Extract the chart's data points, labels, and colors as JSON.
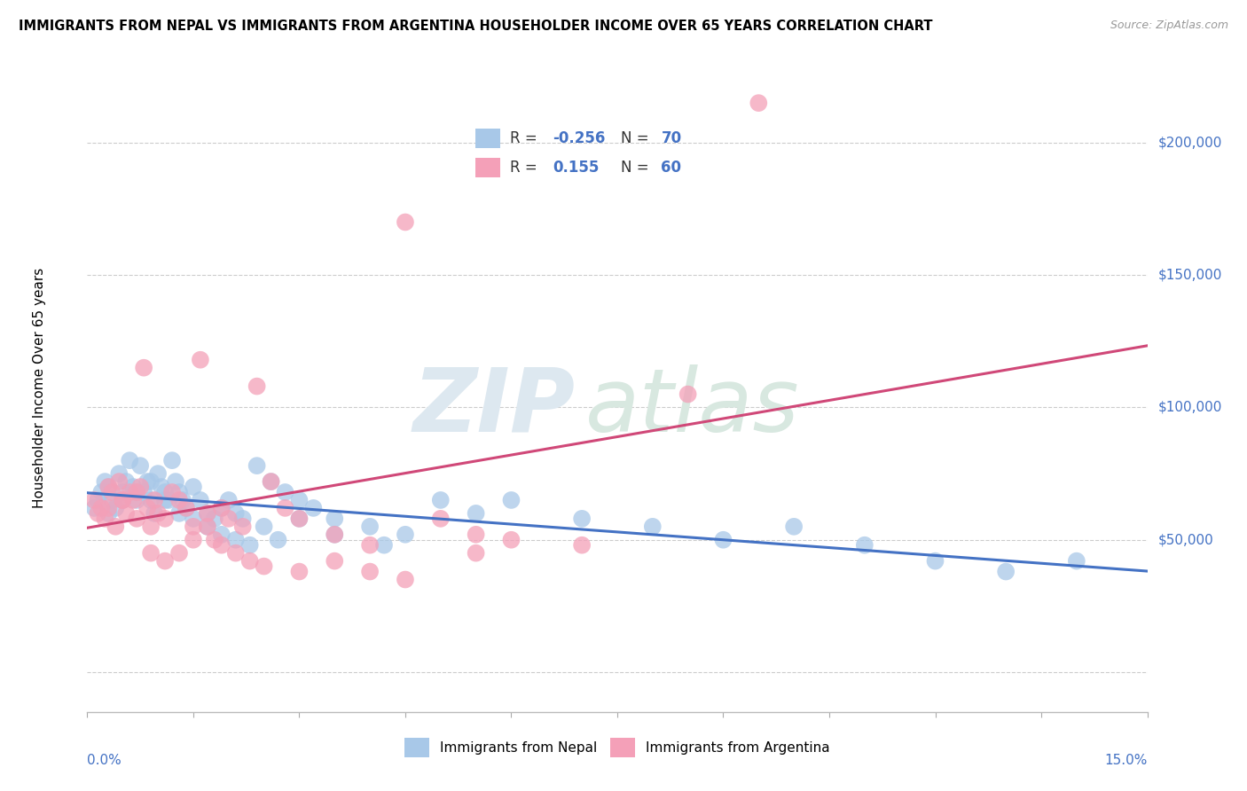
{
  "title": "IMMIGRANTS FROM NEPAL VS IMMIGRANTS FROM ARGENTINA HOUSEHOLDER INCOME OVER 65 YEARS CORRELATION CHART",
  "source": "Source: ZipAtlas.com",
  "ylabel": "Householder Income Over 65 years",
  "nepal_color": "#a8c8e8",
  "argentina_color": "#f4a0b8",
  "nepal_line_color": "#4472c4",
  "argentina_line_color": "#d04878",
  "nepal_R": -0.256,
  "nepal_N": 70,
  "argentina_R": 0.155,
  "argentina_N": 60,
  "xlim": [
    0.0,
    15.0
  ],
  "ylim": [
    -15000,
    230000
  ],
  "yticks": [
    0,
    50000,
    100000,
    150000,
    200000
  ],
  "nepal_x": [
    0.1,
    0.15,
    0.2,
    0.25,
    0.3,
    0.35,
    0.4,
    0.45,
    0.5,
    0.55,
    0.6,
    0.65,
    0.7,
    0.75,
    0.8,
    0.85,
    0.9,
    0.95,
    1.0,
    1.05,
    1.1,
    1.15,
    1.2,
    1.25,
    1.3,
    1.35,
    1.4,
    1.5,
    1.6,
    1.7,
    1.8,
    1.9,
    2.0,
    2.1,
    2.2,
    2.4,
    2.6,
    2.8,
    3.0,
    3.2,
    3.5,
    4.0,
    4.5,
    5.0,
    5.5,
    6.0,
    7.0,
    8.0,
    9.0,
    10.0,
    11.0,
    12.0,
    13.0,
    14.0,
    0.3,
    0.5,
    0.7,
    0.9,
    1.1,
    1.3,
    1.5,
    1.7,
    1.9,
    2.1,
    2.3,
    2.5,
    2.7,
    3.0,
    3.5,
    4.2
  ],
  "nepal_y": [
    62000,
    65000,
    68000,
    72000,
    70000,
    65000,
    62000,
    75000,
    68000,
    72000,
    80000,
    70000,
    65000,
    78000,
    68000,
    72000,
    65000,
    60000,
    75000,
    70000,
    68000,
    65000,
    80000,
    72000,
    68000,
    65000,
    62000,
    70000,
    65000,
    60000,
    58000,
    62000,
    65000,
    60000,
    58000,
    78000,
    72000,
    68000,
    65000,
    62000,
    58000,
    55000,
    52000,
    65000,
    60000,
    65000,
    58000,
    55000,
    50000,
    55000,
    48000,
    42000,
    38000,
    42000,
    60000,
    65000,
    68000,
    72000,
    65000,
    60000,
    58000,
    55000,
    52000,
    50000,
    48000,
    55000,
    50000,
    58000,
    52000,
    48000
  ],
  "argentina_x": [
    0.1,
    0.15,
    0.2,
    0.25,
    0.3,
    0.35,
    0.4,
    0.45,
    0.5,
    0.55,
    0.6,
    0.65,
    0.7,
    0.75,
    0.8,
    0.85,
    0.9,
    0.95,
    1.0,
    1.1,
    1.2,
    1.3,
    1.4,
    1.5,
    1.6,
    1.7,
    1.8,
    1.9,
    2.0,
    2.2,
    2.4,
    2.6,
    2.8,
    3.0,
    3.5,
    4.0,
    4.5,
    5.0,
    5.5,
    6.0,
    7.0,
    8.5,
    0.3,
    0.5,
    0.7,
    0.9,
    1.1,
    1.3,
    1.5,
    1.7,
    1.9,
    2.1,
    2.3,
    2.5,
    3.0,
    3.5,
    4.0,
    4.5,
    5.5,
    9.5
  ],
  "argentina_y": [
    65000,
    60000,
    62000,
    58000,
    70000,
    68000,
    55000,
    72000,
    65000,
    60000,
    68000,
    65000,
    58000,
    70000,
    115000,
    62000,
    55000,
    65000,
    60000,
    58000,
    68000,
    65000,
    62000,
    55000,
    118000,
    60000,
    50000,
    62000,
    58000,
    55000,
    108000,
    72000,
    62000,
    58000,
    52000,
    48000,
    170000,
    58000,
    52000,
    50000,
    48000,
    105000,
    62000,
    65000,
    68000,
    45000,
    42000,
    45000,
    50000,
    55000,
    48000,
    45000,
    42000,
    40000,
    38000,
    42000,
    38000,
    35000,
    45000,
    215000
  ]
}
